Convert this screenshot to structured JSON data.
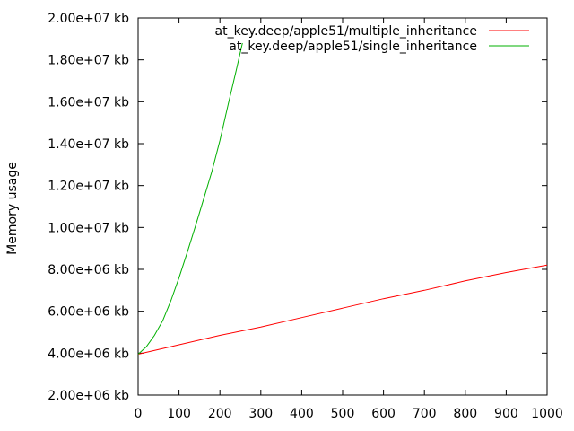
{
  "chart_data": {
    "type": "line",
    "title": "",
    "xlabel": "",
    "ylabel": "Memory usage",
    "xlim": [
      0,
      1000
    ],
    "ylim": [
      2000000,
      20000000
    ],
    "x_ticks": [
      0,
      100,
      200,
      300,
      400,
      500,
      600,
      700,
      800,
      900,
      1000
    ],
    "x_tick_labels": [
      "0",
      "100",
      "200",
      "300",
      "400",
      "500",
      "600",
      "700",
      "800",
      "900",
      "1000"
    ],
    "y_ticks": [
      2000000,
      4000000,
      6000000,
      8000000,
      10000000,
      12000000,
      14000000,
      16000000,
      18000000,
      20000000
    ],
    "y_tick_labels": [
      "2.00e+06 kb",
      "4.00e+06 kb",
      "6.00e+06 kb",
      "8.00e+06 kb",
      "1.00e+07 kb",
      "1.20e+07 kb",
      "1.40e+07 kb",
      "1.60e+07 kb",
      "1.80e+07 kb",
      "2.00e+07 kb"
    ],
    "grid": false,
    "legend_position": "top-right",
    "series": [
      {
        "name": "at_key.deep/apple51/multiple_inheritance",
        "color": "#ff0000",
        "x": [
          0,
          100,
          200,
          300,
          400,
          500,
          600,
          700,
          800,
          900,
          1000
        ],
        "y": [
          3950000,
          4400000,
          4850000,
          5250000,
          5700000,
          6150000,
          6600000,
          7000000,
          7450000,
          7850000,
          8200000
        ]
      },
      {
        "name": "at_key.deep/apple51/single_inheritance",
        "color": "#00b000",
        "x": [
          0,
          20,
          40,
          60,
          80,
          100,
          120,
          140,
          160,
          180,
          200,
          220,
          240,
          255
        ],
        "y": [
          3950000,
          4300000,
          4850000,
          5550000,
          6500000,
          7600000,
          8800000,
          10050000,
          11350000,
          12650000,
          14150000,
          15850000,
          17500000,
          18800000
        ]
      }
    ]
  }
}
